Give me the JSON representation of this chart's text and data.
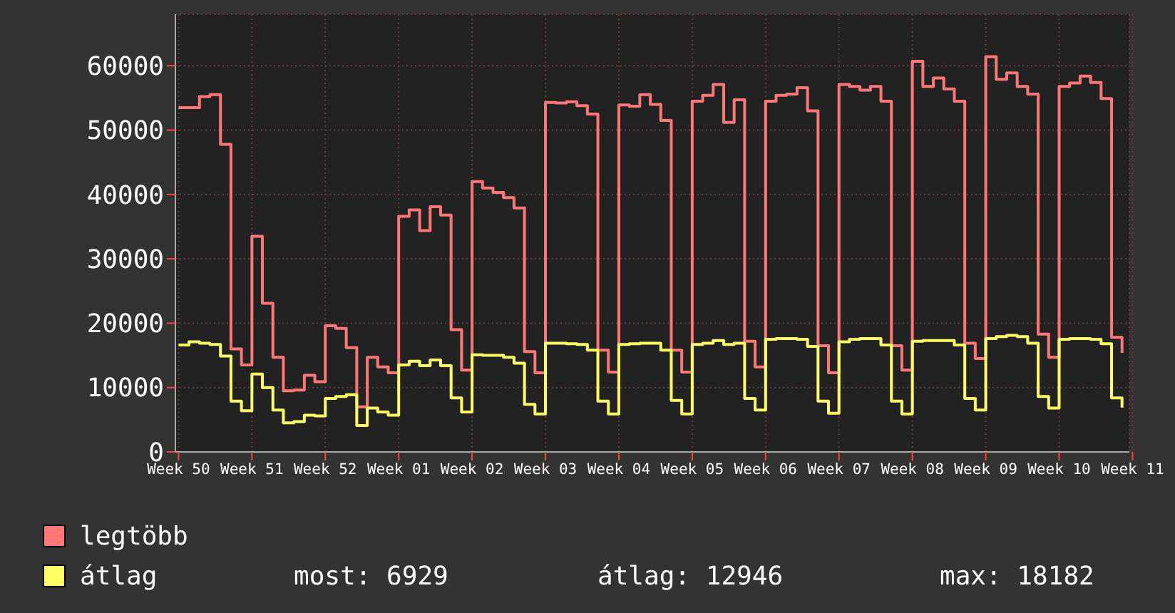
{
  "chart_data": {
    "type": "step",
    "categories": [
      "Week 50",
      null,
      null,
      null,
      null,
      null,
      null,
      "Week 51",
      null,
      null,
      null,
      null,
      null,
      null,
      "Week 52",
      null,
      null,
      null,
      null,
      null,
      null,
      "Week 01",
      null,
      null,
      null,
      null,
      null,
      null,
      "Week 02",
      null,
      null,
      null,
      null,
      null,
      null,
      "Week 03",
      null,
      null,
      null,
      null,
      null,
      null,
      "Week 04",
      null,
      null,
      null,
      null,
      null,
      null,
      "Week 05",
      null,
      null,
      null,
      null,
      null,
      null,
      "Week 06",
      null,
      null,
      null,
      null,
      null,
      null,
      "Week 07",
      null,
      null,
      null,
      null,
      null,
      null,
      "Week 08",
      null,
      null,
      null,
      null,
      null,
      null,
      "Week 09",
      null,
      null,
      null,
      null,
      null,
      null,
      "Week 10",
      null,
      null,
      null,
      null,
      null,
      null,
      "Week 11"
    ],
    "series": [
      {
        "name": "legtöbb",
        "color": "#ff7777",
        "values": [
          53500,
          53500,
          55200,
          55500,
          47800,
          16000,
          13500,
          33500,
          23100,
          14700,
          9500,
          9600,
          11900,
          10900,
          19600,
          19200,
          16200,
          7000,
          14700,
          13200,
          12300,
          36600,
          37600,
          34400,
          38100,
          36800,
          19000,
          12700,
          42000,
          41000,
          40300,
          39500,
          37900,
          15600,
          12300,
          54300,
          54200,
          54400,
          53800,
          52500,
          15800,
          12400,
          53900,
          53700,
          55500,
          54000,
          51500,
          15800,
          12400,
          54500,
          55400,
          57100,
          51200,
          54700,
          17200,
          13200,
          54500,
          55400,
          55600,
          56600,
          53000,
          16500,
          12300,
          57100,
          56800,
          56200,
          56800,
          54500,
          16500,
          12700,
          60700,
          56800,
          58100,
          56400,
          54500,
          16900,
          14500,
          61400,
          57900,
          58900,
          56800,
          55600,
          18300,
          14700,
          56800,
          57300,
          58400,
          57400,
          54900,
          17800,
          15400,
          null
        ]
      },
      {
        "name": "átlag",
        "color": "#ffff66",
        "values": [
          16600,
          17100,
          16900,
          16700,
          14900,
          7900,
          6400,
          12100,
          10000,
          6500,
          4500,
          4700,
          5700,
          5600,
          8300,
          8600,
          8900,
          4100,
          6800,
          6200,
          5700,
          13500,
          14100,
          13400,
          14300,
          13400,
          8400,
          6200,
          15100,
          15000,
          15000,
          14700,
          13800,
          7400,
          5900,
          16900,
          16900,
          16800,
          16700,
          15800,
          7900,
          5900,
          16700,
          16800,
          16900,
          16900,
          15800,
          8000,
          5900,
          16700,
          16900,
          17300,
          16700,
          16900,
          8300,
          6500,
          17500,
          17600,
          17600,
          17500,
          16400,
          7900,
          6000,
          17100,
          17500,
          17600,
          17600,
          16600,
          7900,
          5900,
          17200,
          17300,
          17300,
          17300,
          16600,
          8300,
          6500,
          17600,
          17900,
          18100,
          17900,
          16900,
          8600,
          6800,
          17500,
          17600,
          17600,
          17500,
          16800,
          8400,
          6900,
          null
        ]
      }
    ],
    "ylim": [
      0,
      68000
    ],
    "yticks": [
      0,
      10000,
      20000,
      30000,
      40000,
      50000,
      60000
    ],
    "grid": true,
    "legend": "bottom",
    "annotations": [
      "most: 6929",
      "átlag: 12946",
      "max: 18182"
    ]
  }
}
